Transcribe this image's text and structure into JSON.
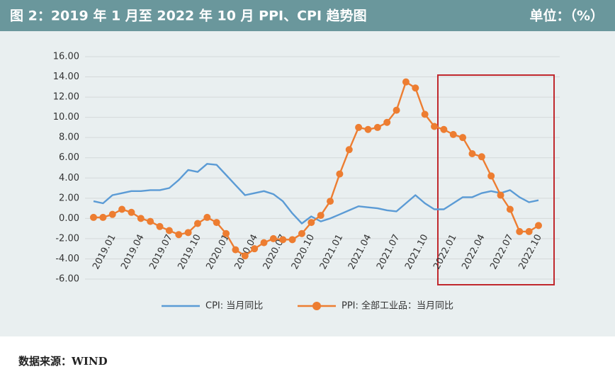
{
  "chart_data": {
    "type": "line",
    "title": "图 2：2019 年 1 月至 2022 年 10 月 PPI、CPI 趋势图",
    "unit_label": "单位：（%）",
    "source": "数据来源：WIND",
    "categories": [
      "2019.01",
      null,
      null,
      "2019.04",
      null,
      null,
      "2019.07",
      null,
      null,
      "2019.10",
      null,
      null,
      "2020.01",
      null,
      null,
      "2020.04",
      null,
      null,
      "2020.07",
      null,
      null,
      "2020.10",
      null,
      null,
      "2021.01",
      null,
      null,
      "2021.04",
      null,
      null,
      "2021.07",
      null,
      null,
      "2021.10",
      null,
      null,
      "2022.01",
      null,
      null,
      "2022.04",
      null,
      null,
      "2022.07",
      null,
      null,
      "2022.10",
      null,
      null
    ],
    "series": [
      {
        "name": "CPI: 当月同比",
        "color": "#5b9bd5",
        "markers": false,
        "values": [
          1.7,
          1.5,
          2.3,
          2.5,
          2.7,
          2.7,
          2.8,
          2.8,
          3.0,
          3.8,
          4.8,
          4.6,
          5.4,
          5.3,
          4.3,
          3.3,
          2.3,
          2.5,
          2.7,
          2.4,
          1.7,
          0.5,
          -0.5,
          0.2,
          -0.3,
          0.0,
          0.4,
          0.8,
          1.2,
          1.1,
          1.0,
          0.8,
          0.7,
          1.5,
          2.3,
          1.5,
          0.9,
          0.9,
          1.5,
          2.1,
          2.1,
          2.5,
          2.7,
          2.5,
          2.8,
          2.1,
          1.6,
          1.8
        ]
      },
      {
        "name": "PPI: 全部工业品：当月同比",
        "color": "#ed7d31",
        "markers": true,
        "values": [
          0.1,
          0.1,
          0.4,
          0.9,
          0.6,
          0.0,
          -0.3,
          -0.8,
          -1.2,
          -1.6,
          -1.4,
          -0.5,
          0.1,
          -0.4,
          -1.5,
          -3.1,
          -3.7,
          -3.0,
          -2.4,
          -2.0,
          -2.1,
          -2.1,
          -1.5,
          -0.4,
          0.3,
          1.7,
          4.4,
          6.8,
          9.0,
          8.8,
          9.0,
          9.5,
          10.7,
          13.5,
          12.9,
          10.3,
          9.1,
          8.8,
          8.3,
          8.0,
          6.4,
          6.1,
          4.2,
          2.3,
          0.9,
          -1.3,
          -1.3,
          -0.7
        ]
      }
    ],
    "ylim": [
      -6,
      16
    ],
    "yticks": [
      {
        "value": -6,
        "label": "-6.00"
      },
      {
        "value": -4,
        "label": "-4.00"
      },
      {
        "value": -2,
        "label": "-2.00"
      },
      {
        "value": 0,
        "label": "0.00"
      },
      {
        "value": 2,
        "label": "2.00"
      },
      {
        "value": 4,
        "label": "4.00"
      },
      {
        "value": 6,
        "label": "6.00"
      },
      {
        "value": 8,
        "label": "8.00"
      },
      {
        "value": 10,
        "label": "10.00"
      },
      {
        "value": 12,
        "label": "12.00"
      },
      {
        "value": 14,
        "label": "14.00"
      },
      {
        "value": 16,
        "label": "16.00"
      }
    ],
    "grid": true,
    "legend": "bottom"
  }
}
